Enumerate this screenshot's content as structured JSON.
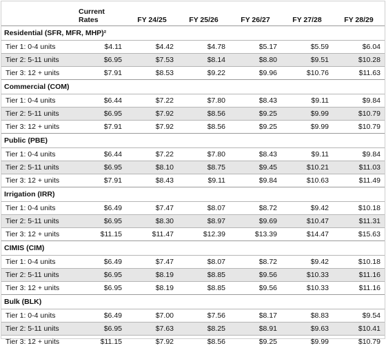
{
  "header": {
    "columns": [
      "Current Rates",
      "FY 24/25",
      "FY 25/26",
      "FY 26/27",
      "FY 27/28",
      "FY 28/29"
    ]
  },
  "sections": [
    {
      "title": "Residential (SFR, MFR, MHP)²",
      "rows": [
        {
          "label": "Tier 1: 0-4 units",
          "values": [
            "$4.11",
            "$4.42",
            "$4.78",
            "$5.17",
            "$5.59",
            "$6.04"
          ]
        },
        {
          "label": "Tier 2: 5-11 units",
          "values": [
            "$6.95",
            "$7.53",
            "$8.14",
            "$8.80",
            "$9.51",
            "$10.28"
          ]
        },
        {
          "label": "Tier 3: 12 + units",
          "values": [
            "$7.91",
            "$8.53",
            "$9.22",
            "$9.96",
            "$10.76",
            "$11.63"
          ]
        }
      ]
    },
    {
      "title": "Commercial (COM)",
      "rows": [
        {
          "label": "Tier 1: 0-4 units",
          "values": [
            "$6.44",
            "$7.22",
            "$7.80",
            "$8.43",
            "$9.11",
            "$9.84"
          ]
        },
        {
          "label": "Tier 2: 5-11 units",
          "values": [
            "$6.95",
            "$7.92",
            "$8.56",
            "$9.25",
            "$9.99",
            "$10.79"
          ]
        },
        {
          "label": "Tier 3: 12 + units",
          "values": [
            "$7.91",
            "$7.92",
            "$8.56",
            "$9.25",
            "$9.99",
            "$10.79"
          ]
        }
      ]
    },
    {
      "title": "Public (PBE)",
      "rows": [
        {
          "label": "Tier 1: 0-4 units",
          "values": [
            "$6.44",
            "$7.22",
            "$7.80",
            "$8.43",
            "$9.11",
            "$9.84"
          ]
        },
        {
          "label": "Tier 2: 5-11 units",
          "values": [
            "$6.95",
            "$8.10",
            "$8.75",
            "$9.45",
            "$10.21",
            "$11.03"
          ]
        },
        {
          "label": "Tier 3: 12 + units",
          "values": [
            "$7.91",
            "$8.43",
            "$9.11",
            "$9.84",
            "$10.63",
            "$11.49"
          ]
        }
      ]
    },
    {
      "title": "Irrigation (IRR)",
      "rows": [
        {
          "label": "Tier 1: 0-4 units",
          "values": [
            "$6.49",
            "$7.47",
            "$8.07",
            "$8.72",
            "$9.42",
            "$10.18"
          ]
        },
        {
          "label": "Tier 2: 5-11 units",
          "values": [
            "$6.95",
            "$8.30",
            "$8.97",
            "$9.69",
            "$10.47",
            "$11.31"
          ]
        },
        {
          "label": "Tier 3: 12 + units",
          "values": [
            "$11.15",
            "$11.47",
            "$12.39",
            "$13.39",
            "$14.47",
            "$15.63"
          ]
        }
      ]
    },
    {
      "title": "CIMIS (CIM)",
      "rows": [
        {
          "label": "Tier 1: 0-4 units",
          "values": [
            "$6.49",
            "$7.47",
            "$8.07",
            "$8.72",
            "$9.42",
            "$10.18"
          ]
        },
        {
          "label": "Tier 2: 5-11 units",
          "values": [
            "$6.95",
            "$8.19",
            "$8.85",
            "$9.56",
            "$10.33",
            "$11.16"
          ]
        },
        {
          "label": "Tier 3: 12 + units",
          "values": [
            "$6.95",
            "$8.19",
            "$8.85",
            "$9.56",
            "$10.33",
            "$11.16"
          ]
        }
      ]
    },
    {
      "title": "Bulk (BLK)",
      "rows": [
        {
          "label": "Tier 1: 0-4 units",
          "values": [
            "$6.49",
            "$7.00",
            "$7.56",
            "$8.17",
            "$8.83",
            "$9.54"
          ]
        },
        {
          "label": "Tier 2: 5-11 units",
          "values": [
            "$6.95",
            "$7.63",
            "$8.25",
            "$8.91",
            "$9.63",
            "$10.41"
          ]
        },
        {
          "label": "Tier 3: 12 + units",
          "values": [
            "$11.15",
            "$7.92",
            "$8.56",
            "$9.25",
            "$9.99",
            "$10.79"
          ]
        }
      ]
    }
  ]
}
